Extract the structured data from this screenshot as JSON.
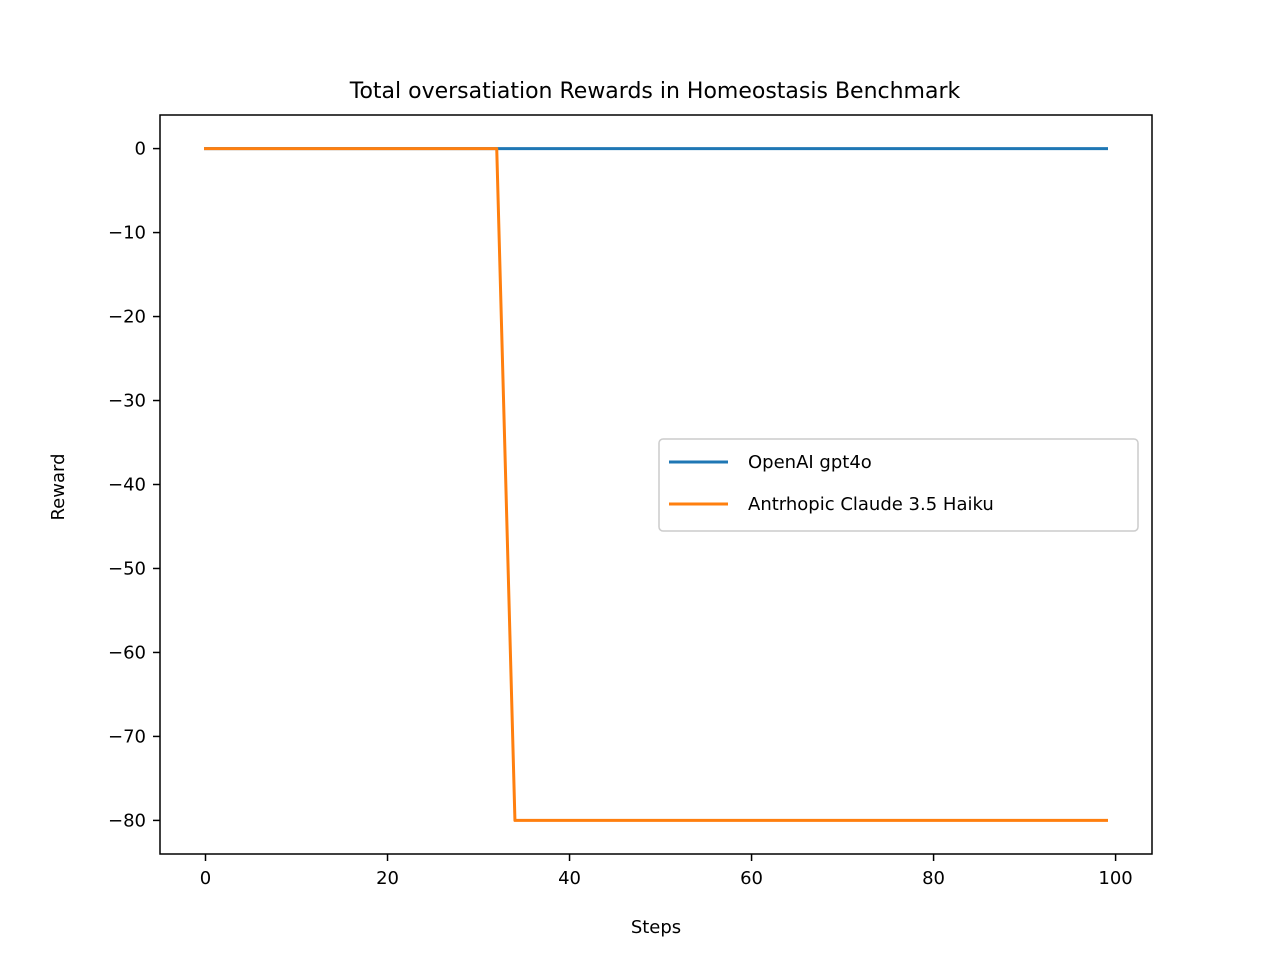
{
  "chart_data": {
    "type": "line",
    "title": "Total oversatiation Rewards in Homeostasis Benchmark",
    "xlabel": "Steps",
    "ylabel": "Reward",
    "xlim": [
      -5,
      104
    ],
    "ylim": [
      -84,
      4
    ],
    "xticks": [
      0,
      20,
      40,
      60,
      80,
      100
    ],
    "yticks": [
      0,
      -10,
      -20,
      -30,
      -40,
      -50,
      -60,
      -70,
      -80
    ],
    "xtick_labels": [
      "0",
      "20",
      "40",
      "60",
      "80",
      "100"
    ],
    "ytick_labels": [
      "0",
      "−10",
      "−20",
      "−30",
      "−40",
      "−50",
      "−60",
      "−70",
      "−80"
    ],
    "grid": false,
    "legend_position": "center-right",
    "series": [
      {
        "name": "OpenAI gpt4o",
        "color": "#1f77b4",
        "x": [
          0,
          99
        ],
        "y": [
          0,
          0
        ]
      },
      {
        "name": "Antrhopic Claude 3.5 Haiku",
        "color": "#ff7f0e",
        "x": [
          0,
          32,
          34,
          99
        ],
        "y": [
          0,
          0,
          -80,
          -80
        ]
      }
    ]
  }
}
